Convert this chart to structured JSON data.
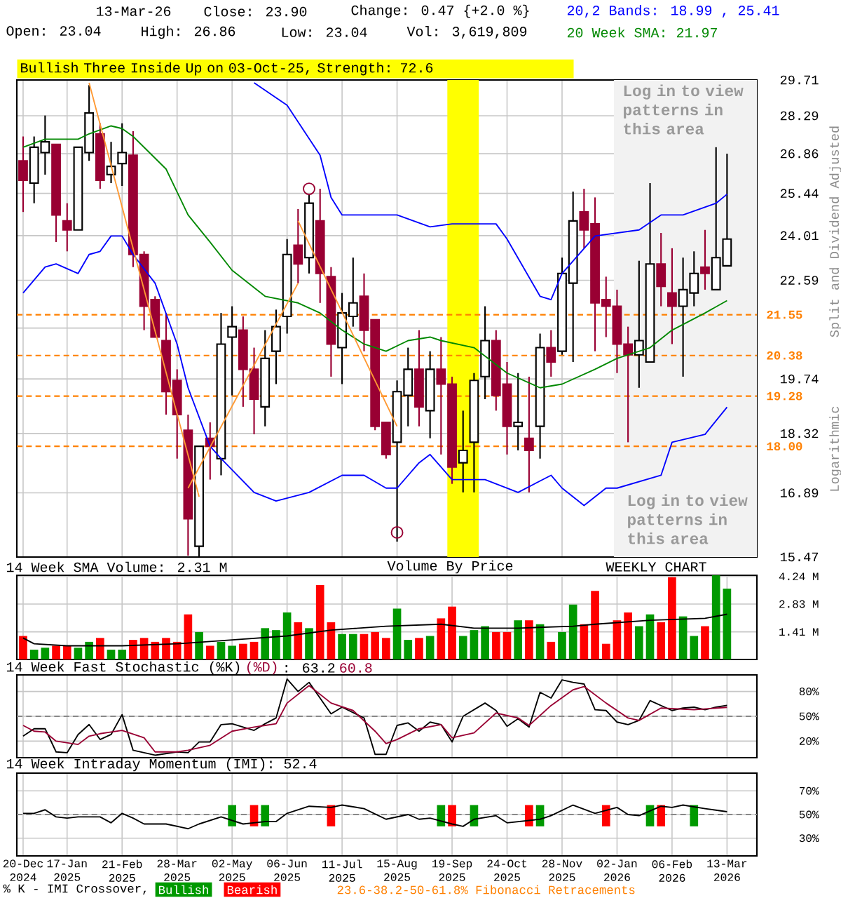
{
  "chart_data": [
    {
      "type": "candlestick",
      "x": [
        "2024-12-20",
        "2024-12-27",
        "2025-01-03",
        "2025-01-10",
        "2025-01-17",
        "2025-01-24",
        "2025-01-31",
        "2025-02-07",
        "2025-02-14",
        "2025-02-21",
        "2025-02-28",
        "2025-03-07",
        "2025-03-14",
        "2025-03-21",
        "2025-03-28",
        "2025-04-04",
        "2025-04-11",
        "2025-04-18",
        "2025-04-25",
        "2025-05-02",
        "2025-05-09",
        "2025-05-16",
        "2025-05-23",
        "2025-05-30",
        "2025-06-06",
        "2025-06-13",
        "2025-06-20",
        "2025-06-27",
        "2025-07-04",
        "2025-07-11",
        "2025-07-18",
        "2025-07-25",
        "2025-08-01",
        "2025-08-08",
        "2025-08-15",
        "2025-08-22",
        "2025-08-29",
        "2025-09-05",
        "2025-09-12",
        "2025-09-19",
        "2025-09-26",
        "2025-10-03",
        "2025-10-10",
        "2025-10-17",
        "2025-10-24",
        "2025-10-31",
        "2025-11-07",
        "2025-11-14",
        "2025-11-21",
        "2025-11-28",
        "2025-12-05",
        "2025-12-12",
        "2025-12-19",
        "2025-12-26",
        "2026-01-02",
        "2026-01-09",
        "2026-01-16",
        "2026-01-23",
        "2026-01-30",
        "2026-02-06",
        "2026-02-13",
        "2026-02-20",
        "2026-02-27",
        "2026-03-06",
        "2026-03-13"
      ],
      "series": [
        {
          "type": "candlestick",
          "colors": [
            "#990033",
            "#ffffff",
            "#ffffff",
            "#990033",
            "#990033",
            "#ffffff",
            "#ffffff",
            "#990033",
            "#ffffff",
            "#ffffff",
            "#990033",
            "#990033",
            "#990033",
            "#990033",
            "#990033",
            "#990033",
            "#ffffff",
            "#990033",
            "#ffffff",
            "#ffffff",
            "#990033",
            "#990033",
            "#ffffff",
            "#ffffff",
            "#ffffff",
            "#990033",
            "#ffffff",
            "#990033",
            "#990033",
            "#ffffff",
            "#ffffff",
            "#990033",
            "#990033",
            "#990033",
            "#ffffff",
            "#ffffff",
            "#990033",
            "#ffffff",
            "#990033",
            "#990033",
            "#ffffff",
            "#ffffff",
            "#ffffff",
            "#990033",
            "#990033",
            "#ffffff",
            "#990033",
            "#ffffff",
            "#990033",
            "#ffffff",
            "#ffffff",
            "#990033",
            "#990033",
            "#990033",
            "#990033",
            "#990033",
            "#ffffff",
            "#ffffff",
            "#990033",
            "#990033",
            "#ffffff",
            "#ffffff",
            "#990033",
            "#ffffff",
            "#ffffff"
          ],
          "ohlc": [
            [
              26.6,
              27.5,
              24.8,
              25.9
            ],
            [
              25.8,
              27.5,
              25.1,
              27.1
            ],
            [
              26.9,
              28.3,
              26.1,
              27.3
            ],
            [
              27.2,
              27.2,
              23.8,
              24.7
            ],
            [
              24.5,
              25.1,
              23.5,
              24.2
            ],
            [
              24.2,
              27.1,
              24.2,
              27.1
            ],
            [
              26.9,
              29.5,
              26.6,
              28.4
            ],
            [
              27.6,
              28.0,
              25.6,
              25.9
            ],
            [
              26.1,
              27.3,
              25.8,
              26.4
            ],
            [
              26.5,
              28.0,
              25.7,
              26.9
            ],
            [
              26.8,
              27.7,
              23.0,
              23.4
            ],
            [
              23.4,
              23.5,
              21.1,
              21.8
            ],
            [
              22.0,
              22.1,
              20.9,
              20.9
            ],
            [
              20.8,
              21.6,
              18.8,
              19.4
            ],
            [
              19.7,
              20.0,
              17.7,
              18.8
            ],
            [
              18.4,
              18.8,
              15.5,
              16.3
            ],
            [
              15.7,
              18.0,
              15.47,
              18.0
            ],
            [
              18.2,
              18.6,
              17.2,
              18.0
            ],
            [
              17.7,
              21.6,
              17.3,
              20.7
            ],
            [
              20.9,
              21.8,
              19.3,
              21.2
            ],
            [
              21.1,
              21.5,
              19.0,
              20.0
            ],
            [
              20.0,
              20.6,
              18.3,
              19.2
            ],
            [
              19.0,
              21.1,
              18.5,
              20.3
            ],
            [
              20.5,
              21.7,
              19.6,
              21.2
            ],
            [
              21.5,
              23.9,
              21.0,
              23.4
            ],
            [
              23.7,
              24.9,
              22.5,
              23.1
            ],
            [
              23.3,
              25.4,
              22.8,
              25.1
            ],
            [
              24.5,
              25.6,
              21.9,
              22.8
            ],
            [
              22.7,
              23.0,
              19.8,
              20.7
            ],
            [
              20.6,
              22.2,
              19.6,
              21.6
            ],
            [
              21.5,
              23.3,
              21.2,
              21.9
            ],
            [
              22.1,
              22.8,
              20.5,
              21.1
            ],
            [
              21.4,
              21.4,
              18.4,
              18.5
            ],
            [
              18.6,
              18.6,
              17.7,
              17.8
            ],
            [
              18.1,
              19.7,
              15.8,
              19.4
            ],
            [
              19.3,
              20.6,
              18.5,
              20.0
            ],
            [
              20.0,
              21.1,
              18.5,
              19.0
            ],
            [
              18.9,
              20.5,
              18.2,
              20.0
            ],
            [
              20.0,
              20.9,
              17.8,
              19.6
            ],
            [
              19.6,
              19.8,
              17.1,
              17.5
            ],
            [
              17.6,
              18.9,
              16.9,
              17.9
            ],
            [
              18.1,
              19.9,
              16.9,
              19.7
            ],
            [
              19.8,
              21.8,
              19.2,
              20.8
            ],
            [
              20.8,
              21.1,
              18.9,
              19.3
            ],
            [
              19.6,
              20.2,
              17.8,
              18.5
            ],
            [
              18.5,
              19.9,
              17.9,
              18.6
            ],
            [
              18.2,
              19.8,
              16.9,
              17.9
            ],
            [
              18.5,
              21.0,
              17.7,
              20.6
            ],
            [
              20.6,
              21.1,
              19.8,
              20.2
            ],
            [
              20.5,
              23.3,
              20.4,
              22.8
            ],
            [
              22.5,
              25.5,
              20.2,
              24.5
            ],
            [
              24.8,
              25.6,
              23.6,
              24.2
            ],
            [
              24.4,
              25.3,
              20.5,
              21.9
            ],
            [
              22.0,
              22.7,
              20.9,
              21.8
            ],
            [
              21.8,
              22.3,
              19.9,
              20.7
            ],
            [
              20.7,
              21.2,
              18.1,
              20.4
            ],
            [
              20.4,
              23.2,
              19.5,
              20.8
            ],
            [
              20.2,
              25.8,
              20.2,
              23.1
            ],
            [
              23.1,
              24.1,
              21.8,
              22.4
            ],
            [
              22.2,
              23.6,
              20.7,
              21.8
            ],
            [
              21.8,
              23.3,
              19.8,
              22.3
            ],
            [
              22.2,
              23.5,
              21.8,
              22.8
            ],
            [
              23.0,
              24.2,
              22.3,
              22.8
            ],
            [
              22.3,
              27.1,
              22.3,
              23.3
            ],
            [
              23.04,
              26.86,
              23.04,
              23.9
            ]
          ]
        },
        {
          "type": "line",
          "color": "#0000ff",
          "x": [
            "2025-05-16",
            "2025-06-06",
            "2025-06-27",
            "2025-07-04",
            "2025-07-11",
            "2025-08-15",
            "2025-09-05",
            "2025-09-19",
            "2025-10-17",
            "2025-10-24",
            "2025-11-14",
            "2025-11-21",
            "2025-11-28",
            "2025-12-19",
            "2026-01-16",
            "2026-01-30",
            "2026-02-13",
            "2026-03-06",
            "2026-03-13"
          ],
          "values": [
            29.6,
            28.7,
            26.8,
            25.3,
            24.7,
            24.7,
            24.3,
            24.4,
            24.4,
            23.9,
            22.1,
            22.0,
            22.8,
            24.0,
            24.2,
            24.7,
            24.7,
            25.1,
            25.41
          ]
        },
        {
          "type": "line",
          "color": "#0000ff",
          "x": [
            "2024-12-20",
            "2025-01-03",
            "2025-01-10",
            "2025-01-24",
            "2025-01-31",
            "2025-02-07",
            "2025-02-14",
            "2025-02-21",
            "2025-02-28",
            "2025-03-14",
            "2025-03-28",
            "2025-04-04",
            "2025-04-18",
            "2025-04-25",
            "2025-05-16",
            "2025-05-30",
            "2025-06-20",
            "2025-07-11",
            "2025-07-25",
            "2025-08-08",
            "2025-08-15",
            "2025-08-29",
            "2025-09-05",
            "2025-09-19",
            "2025-10-10",
            "2025-10-31",
            "2025-11-21",
            "2025-11-28",
            "2025-12-12",
            "2025-12-26",
            "2026-01-02",
            "2026-01-30",
            "2026-02-06",
            "2026-02-27",
            "2026-03-13"
          ],
          "values": [
            22.2,
            23.0,
            23.1,
            22.8,
            23.4,
            23.5,
            24.0,
            24.0,
            23.4,
            22.5,
            20.7,
            19.5,
            18.0,
            17.7,
            16.9,
            16.7,
            16.9,
            17.3,
            17.3,
            17.0,
            17.0,
            17.6,
            17.8,
            17.2,
            17.2,
            16.9,
            17.3,
            17.0,
            16.6,
            17.0,
            17.0,
            17.3,
            18.1,
            18.3,
            18.99
          ]
        },
        {
          "type": "line",
          "color": "#008800",
          "x": [
            "2024-12-20",
            "2025-01-03",
            "2025-01-24",
            "2025-01-31",
            "2025-02-14",
            "2025-02-21",
            "2025-02-28",
            "2025-03-21",
            "2025-04-04",
            "2025-04-18",
            "2025-05-02",
            "2025-05-23",
            "2025-06-13",
            "2025-06-27",
            "2025-07-11",
            "2025-07-25",
            "2025-08-08",
            "2025-08-22",
            "2025-09-05",
            "2025-09-12",
            "2025-10-03",
            "2025-10-24",
            "2025-11-14",
            "2025-11-28",
            "2025-12-19",
            "2026-01-02",
            "2026-01-23",
            "2026-02-06",
            "2026-02-27",
            "2026-03-13"
          ],
          "values": [
            27.1,
            27.4,
            27.4,
            27.6,
            27.9,
            27.8,
            27.5,
            26.3,
            24.7,
            23.8,
            22.9,
            22.1,
            21.9,
            21.6,
            21.1,
            20.7,
            20.5,
            20.8,
            20.9,
            20.8,
            20.6,
            19.9,
            19.5,
            19.6,
            20.0,
            20.3,
            20.6,
            21.1,
            21.6,
            21.97
          ]
        },
        {
          "type": "line",
          "color": "#ff9933",
          "x": [
            "2025-01-31",
            "2025-04-11"
          ],
          "values": [
            29.6,
            16.8
          ]
        },
        {
          "type": "line",
          "color": "#ff9933",
          "x": [
            "2025-04-04",
            "2025-06-13"
          ],
          "values": [
            17.0,
            22.5
          ]
        },
        {
          "type": "line",
          "color": "#ff9933",
          "x": [
            "2025-06-13",
            "2025-08-15"
          ],
          "values": [
            24.5,
            18.5
          ]
        },
        {
          "type": "scatter",
          "color": "#990033",
          "marker": "circle",
          "x": [
            "2025-06-20",
            "2025-08-15"
          ],
          "values": [
            25.6,
            16.0
          ]
        }
      ],
      "xlim": [
        "2024-12-16",
        "2026-04-01"
      ],
      "xticks": [
        {
          "value": "2024-12-20",
          "label": null
        },
        {
          "value": "2025-01-17",
          "label": null
        },
        {
          "value": "2025-02-21",
          "label": null
        },
        {
          "value": "2025-03-28",
          "label": null
        },
        {
          "value": "2025-05-02",
          "label": null
        },
        {
          "value": "2025-06-06",
          "label": null
        },
        {
          "value": "2025-07-11",
          "label": null
        },
        {
          "value": "2025-08-15",
          "label": null
        },
        {
          "value": "2025-09-19",
          "label": null
        },
        {
          "value": "2025-10-24",
          "label": null
        },
        {
          "value": "2025-11-28",
          "label": null
        },
        {
          "value": "2026-01-02",
          "label": null
        },
        {
          "value": "2026-02-06",
          "label": null
        },
        {
          "value": "2026-03-13",
          "label": null
        }
      ],
      "ylim": [
        15.47,
        29.71
      ],
      "yticks": [
        15.47,
        16.89,
        18.32,
        19.74,
        {
          "value": 21.16,
          "label": null
        },
        22.59,
        24.01,
        25.44,
        26.86,
        28.29,
        29.71
      ],
      "log": true,
      "grid": true,
      "tick_labels": "y",
      "ylabel": "Split and Dividend Adjusted",
      "bands": [
        {
          "axis": "x",
          "from": "2025-09-16",
          "to": "2025-10-06",
          "color": "#ffff00",
          "label": "Bullish Three Inside Up on 03-Oct-25, Strength: 72.6"
        },
        {
          "axis": "x",
          "from": "2025-12-31",
          "to": "2026-04-01",
          "color": "#f2f2f2",
          "label": "Log in to view patterns in this area"
        }
      ],
      "ref_lines": [
        {
          "axis": "y",
          "value": 21.55,
          "label": "21.55",
          "color": "#ff8000",
          "line_style": "dashed"
        },
        {
          "axis": "y",
          "value": 20.38,
          "label": "20.38",
          "color": "#ff8000",
          "line_style": "dashed"
        },
        {
          "axis": "y",
          "value": 19.28,
          "label": "19.28",
          "color": "#ff8000",
          "line_style": "dashed"
        },
        {
          "axis": "y",
          "value": 18.0,
          "label": "18.00",
          "color": "#ff8000",
          "line_style": "dashed"
        }
      ],
      "annotations": [
        "13-Mar-26",
        "Close: 23.90",
        "Change: 0.47 {+2.0 %}",
        "Open: 23.04",
        "High: 26.86",
        "Low: 23.04",
        "Vol: 3,619,809",
        "20,2 Bands: 18.99 , 25.41",
        "20 Week SMA: 21.97",
        "Log in to view patterns in this area",
        "Logarithmic",
        "23.6-38.2-50-61.8% Fibonacci Retracements"
      ]
    },
    {
      "type": "bar",
      "title": "14 Week SMA Volume: 2.31 M",
      "x": [
        "2024-12-20",
        "2024-12-27",
        "2025-01-03",
        "2025-01-10",
        "2025-01-17",
        "2025-01-24",
        "2025-01-31",
        "2025-02-07",
        "2025-02-14",
        "2025-02-21",
        "2025-02-28",
        "2025-03-07",
        "2025-03-14",
        "2025-03-21",
        "2025-03-28",
        "2025-04-04",
        "2025-04-11",
        "2025-04-18",
        "2025-04-25",
        "2025-05-02",
        "2025-05-09",
        "2025-05-16",
        "2025-05-23",
        "2025-05-30",
        "2025-06-06",
        "2025-06-13",
        "2025-06-20",
        "2025-06-27",
        "2025-07-04",
        "2025-07-11",
        "2025-07-18",
        "2025-07-25",
        "2025-08-01",
        "2025-08-08",
        "2025-08-15",
        "2025-08-22",
        "2025-08-29",
        "2025-09-05",
        "2025-09-12",
        "2025-09-19",
        "2025-09-26",
        "2025-10-03",
        "2025-10-10",
        "2025-10-17",
        "2025-10-24",
        "2025-10-31",
        "2025-11-07",
        "2025-11-14",
        "2025-11-21",
        "2025-11-28",
        "2025-12-05",
        "2025-12-12",
        "2025-12-19",
        "2025-12-26",
        "2026-01-02",
        "2026-01-09",
        "2026-01-16",
        "2026-01-23",
        "2026-01-30",
        "2026-02-06",
        "2026-02-13",
        "2026-02-20",
        "2026-02-27",
        "2026-03-06",
        "2026-03-13"
      ],
      "series": [
        {
          "type": "bar",
          "colors": [
            "#ff0000",
            "#009900",
            "#009900",
            "#ff0000",
            "#ff0000",
            "#009900",
            "#009900",
            "#ff0000",
            "#009900",
            "#009900",
            "#ff0000",
            "#ff0000",
            "#ff0000",
            "#ff0000",
            "#ff0000",
            "#ff0000",
            "#009900",
            "#ff0000",
            "#009900",
            "#009900",
            "#ff0000",
            "#ff0000",
            "#009900",
            "#009900",
            "#009900",
            "#ff0000",
            "#009900",
            "#ff0000",
            "#ff0000",
            "#009900",
            "#009900",
            "#ff0000",
            "#ff0000",
            "#ff0000",
            "#009900",
            "#009900",
            "#ff0000",
            "#009900",
            "#ff0000",
            "#ff0000",
            "#009900",
            "#009900",
            "#009900",
            "#ff0000",
            "#ff0000",
            "#009900",
            "#ff0000",
            "#009900",
            "#ff0000",
            "#009900",
            "#009900",
            "#ff0000",
            "#ff0000",
            "#ff0000",
            "#ff0000",
            "#ff0000",
            "#009900",
            "#009900",
            "#ff0000",
            "#ff0000",
            "#009900",
            "#009900",
            "#ff0000",
            "#009900",
            "#009900"
          ],
          "values": [
            1.2,
            0.5,
            0.6,
            0.7,
            0.7,
            0.6,
            0.9,
            1.1,
            0.5,
            0.5,
            1.0,
            1.1,
            0.9,
            1.1,
            0.9,
            2.3,
            1.4,
            0.7,
            0.9,
            0.7,
            0.8,
            0.9,
            1.6,
            1.5,
            2.4,
            1.9,
            1.6,
            3.8,
            1.9,
            1.3,
            1.3,
            1.3,
            1.4,
            1.1,
            2.6,
            1.0,
            1.1,
            1.2,
            2.1,
            2.7,
            1.2,
            1.5,
            1.7,
            1.4,
            1.4,
            2.0,
            2.0,
            1.8,
            0.9,
            1.4,
            2.8,
            1.8,
            3.5,
            0.8,
            2.0,
            2.4,
            1.7,
            2.3,
            1.9,
            4.2,
            2.2,
            1.2,
            1.7,
            4.3,
            3.62
          ]
        },
        {
          "type": "line",
          "color": "#000000",
          "x": [
            "2024-12-20",
            "2024-12-27",
            "2025-01-17",
            "2025-02-21",
            "2025-03-28",
            "2025-05-02",
            "2025-06-06",
            "2025-07-04",
            "2025-08-08",
            "2025-09-12",
            "2025-10-03",
            "2025-10-31",
            "2025-12-05",
            "2025-12-19",
            "2026-01-23",
            "2026-02-27",
            "2026-03-13"
          ],
          "values": [
            1.1,
            0.8,
            0.7,
            0.7,
            0.8,
            1.0,
            1.2,
            1.5,
            1.7,
            1.8,
            1.6,
            1.6,
            1.7,
            1.8,
            2.0,
            2.1,
            2.31
          ]
        }
      ],
      "xlim": [
        "2024-12-16",
        "2026-04-01"
      ],
      "xticks": [
        {
          "value": "2024-12-20",
          "label": null
        },
        {
          "value": "2025-01-17",
          "label": null
        },
        {
          "value": "2025-02-21",
          "label": null
        },
        {
          "value": "2025-03-28",
          "label": null
        },
        {
          "value": "2025-05-02",
          "label": null
        },
        {
          "value": "2025-06-06",
          "label": null
        },
        {
          "value": "2025-07-11",
          "label": null
        },
        {
          "value": "2025-08-15",
          "label": null
        },
        {
          "value": "2025-09-19",
          "label": null
        },
        {
          "value": "2025-10-24",
          "label": null
        },
        {
          "value": "2025-11-28",
          "label": null
        },
        {
          "value": "2026-01-02",
          "label": null
        },
        {
          "value": "2026-02-06",
          "label": null
        },
        {
          "value": "2026-03-13",
          "label": null
        }
      ],
      "ylim": [
        0,
        4.3
      ],
      "yticks": [
        {
          "value": 1.41,
          "label": "1.41 M"
        },
        {
          "value": 2.83,
          "label": "2.83 M"
        },
        {
          "value": 4.24,
          "label": "4.24 M"
        }
      ],
      "grid": true,
      "tick_labels": "y",
      "annotations": [
        "Volume By Price",
        "WEEKLY CHART"
      ]
    },
    {
      "type": "line",
      "series": [
        {
          "name": "14 Week Fast Stochastic (%K)",
          "color": "#000000",
          "x": [
            "2024-12-20",
            "2024-12-27",
            "2025-01-03",
            "2025-01-10",
            "2025-01-17",
            "2025-01-24",
            "2025-01-31",
            "2025-02-07",
            "2025-02-14",
            "2025-02-21",
            "2025-02-28",
            "2025-03-07",
            "2025-03-14",
            "2025-03-28",
            "2025-04-04",
            "2025-04-11",
            "2025-04-18",
            "2025-04-25",
            "2025-05-02",
            "2025-05-16",
            "2025-05-23",
            "2025-05-30",
            "2025-06-06",
            "2025-06-13",
            "2025-06-20",
            "2025-07-04",
            "2025-07-11",
            "2025-07-25",
            "2025-08-01",
            "2025-08-08",
            "2025-08-15",
            "2025-08-22",
            "2025-08-29",
            "2025-09-05",
            "2025-09-12",
            "2025-09-19",
            "2025-09-26",
            "2025-10-10",
            "2025-10-17",
            "2025-10-24",
            "2025-10-31",
            "2025-11-07",
            "2025-11-14",
            "2025-11-21",
            "2025-11-28",
            "2025-12-05",
            "2025-12-12",
            "2025-12-19",
            "2025-12-26",
            "2026-01-02",
            "2026-01-09",
            "2026-01-16",
            "2026-01-23",
            "2026-01-30",
            "2026-02-06",
            "2026-02-13",
            "2026-02-20",
            "2026-02-27",
            "2026-03-06",
            "2026-03-13"
          ],
          "values": [
            26,
            35,
            35,
            7,
            6,
            28,
            40,
            22,
            28,
            52,
            9,
            6,
            3,
            7,
            6,
            19,
            19,
            40,
            41,
            33,
            41,
            48,
            95,
            80,
            91,
            53,
            61,
            48,
            4,
            4,
            39,
            42,
            32,
            43,
            40,
            19,
            50,
            66,
            57,
            38,
            47,
            37,
            79,
            72,
            94,
            91,
            89,
            58,
            57,
            43,
            40,
            45,
            69,
            63,
            57,
            60,
            61,
            58,
            61,
            63.2
          ]
        },
        {
          "name": "(%D)",
          "color": "#990033",
          "x": [
            "2024-12-20",
            "2024-12-27",
            "2025-01-03",
            "2025-01-10",
            "2025-01-24",
            "2025-01-31",
            "2025-02-07",
            "2025-02-14",
            "2025-02-21",
            "2025-03-07",
            "2025-03-14",
            "2025-03-28",
            "2025-04-04",
            "2025-04-18",
            "2025-05-02",
            "2025-05-16",
            "2025-05-23",
            "2025-05-30",
            "2025-06-06",
            "2025-06-20",
            "2025-07-04",
            "2025-07-18",
            "2025-08-01",
            "2025-08-08",
            "2025-08-15",
            "2025-08-29",
            "2025-09-12",
            "2025-09-19",
            "2025-10-03",
            "2025-10-17",
            "2025-10-31",
            "2025-11-07",
            "2025-11-21",
            "2025-12-05",
            "2025-12-12",
            "2025-12-26",
            "2026-01-09",
            "2026-01-16",
            "2026-01-30",
            "2026-02-20",
            "2026-03-13"
          ],
          "values": [
            39,
            32,
            31,
            20,
            16,
            26,
            29,
            31,
            33,
            24,
            7,
            7,
            9,
            15,
            32,
            37,
            39,
            41,
            66,
            87,
            66,
            57,
            32,
            17,
            22,
            35,
            40,
            24,
            30,
            54,
            48,
            39,
            63,
            82,
            86,
            66,
            48,
            45,
            60,
            58,
            60.8
          ]
        }
      ],
      "xlim": [
        "2024-12-16",
        "2026-04-01"
      ],
      "xticks": [
        {
          "value": "2024-12-20",
          "label": null
        },
        {
          "value": "2025-01-17",
          "label": null
        },
        {
          "value": "2025-02-21",
          "label": null
        },
        {
          "value": "2025-03-28",
          "label": null
        },
        {
          "value": "2025-05-02",
          "label": null
        },
        {
          "value": "2025-06-06",
          "label": null
        },
        {
          "value": "2025-07-11",
          "label": null
        },
        {
          "value": "2025-08-15",
          "label": null
        },
        {
          "value": "2025-09-19",
          "label": null
        },
        {
          "value": "2025-10-24",
          "label": null
        },
        {
          "value": "2025-11-28",
          "label": null
        },
        {
          "value": "2026-01-02",
          "label": null
        },
        {
          "value": "2026-02-06",
          "label": null
        },
        {
          "value": "2026-03-13",
          "label": null
        }
      ],
      "ylim": [
        0,
        100
      ],
      "yticks": [
        {
          "value": 20,
          "label": "20%"
        },
        {
          "value": 50,
          "label": "50%"
        },
        {
          "value": 80,
          "label": "80%"
        }
      ],
      "grid": true,
      "tick_labels": "y",
      "legend": "top left",
      "ref_lines": [
        {
          "axis": "y",
          "value": 50,
          "color": "#888888",
          "line_style": "dashed"
        }
      ],
      "annotations": [
        ": 63.2",
        "60.8"
      ]
    },
    {
      "type": "line",
      "title": "14 Week Intraday Momentum (IMI): 52.4",
      "series": [
        {
          "type": "bar",
          "name": "Bullish",
          "color": "#009900",
          "x": [
            "2025-05-02",
            "2025-05-23",
            "2025-09-12",
            "2025-10-03",
            "2025-11-14",
            "2026-01-23",
            "2026-02-20"
          ],
          "base": [
            40,
            40,
            40,
            40,
            40,
            40,
            40
          ],
          "values": [
            18,
            18,
            18,
            18,
            18,
            18,
            18
          ]
        },
        {
          "type": "bar",
          "name": "Bearish",
          "color": "#ff0000",
          "x": [
            "2025-05-16",
            "2025-07-04",
            "2025-09-19",
            "2025-11-07",
            "2025-12-26",
            "2026-01-30"
          ],
          "base": [
            40,
            40,
            40,
            40,
            40,
            40
          ],
          "values": [
            18,
            18,
            18,
            18,
            18,
            18
          ]
        },
        {
          "color": "#000000",
          "x": [
            "2024-12-20",
            "2024-12-27",
            "2025-01-03",
            "2025-01-10",
            "2025-01-17",
            "2025-01-24",
            "2025-02-07",
            "2025-02-14",
            "2025-02-21",
            "2025-02-28",
            "2025-03-07",
            "2025-03-21",
            "2025-04-04",
            "2025-04-11",
            "2025-04-25",
            "2025-05-09",
            "2025-05-23",
            "2025-05-30",
            "2025-06-06",
            "2025-06-20",
            "2025-07-04",
            "2025-07-11",
            "2025-07-25",
            "2025-08-08",
            "2025-08-22",
            "2025-08-29",
            "2025-09-05",
            "2025-09-19",
            "2025-09-26",
            "2025-10-03",
            "2025-10-17",
            "2025-10-24",
            "2025-11-14",
            "2025-11-21",
            "2025-12-05",
            "2025-12-19",
            "2026-01-02",
            "2026-01-09",
            "2026-01-16",
            "2026-01-30",
            "2026-02-06",
            "2026-02-13",
            "2026-02-27",
            "2026-03-13"
          ],
          "values": [
            51,
            51,
            54,
            48,
            47,
            48,
            48,
            43,
            51,
            47,
            42,
            42,
            38,
            42,
            48,
            42,
            44,
            44,
            51,
            57,
            56,
            58,
            55,
            46,
            50,
            46,
            47,
            42,
            40,
            46,
            49,
            43,
            46,
            49,
            58,
            51,
            56,
            50,
            49,
            57,
            56,
            58,
            55,
            52.4
          ]
        }
      ],
      "xlim": [
        "2024-12-16",
        "2026-04-01"
      ],
      "xticks": [
        {
          "value": "2024-12-20",
          "label": "20-Dec 2024"
        },
        {
          "value": "2025-01-17",
          "label": "17-Jan 2025"
        },
        {
          "value": "2025-02-21",
          "label": "21-Feb 2025"
        },
        {
          "value": "2025-03-28",
          "label": "28-Mar 2025"
        },
        {
          "value": "2025-05-02",
          "label": "02-May 2025"
        },
        {
          "value": "2025-06-06",
          "label": "06-Jun 2025"
        },
        {
          "value": "2025-07-11",
          "label": "11-Jul 2025"
        },
        {
          "value": "2025-08-15",
          "label": "15-Aug 2025"
        },
        {
          "value": "2025-09-19",
          "label": "19-Sep 2025"
        },
        {
          "value": "2025-10-24",
          "label": "24-Oct 2025"
        },
        {
          "value": "2025-11-28",
          "label": "28-Nov 2025"
        },
        {
          "value": "2026-01-02",
          "label": "02-Jan 2026"
        },
        {
          "value": "2026-02-06",
          "label": "06-Feb 2026"
        },
        {
          "value": "2026-03-13",
          "label": "13-Mar 2026"
        }
      ],
      "ylim": [
        15,
        85
      ],
      "yticks": [
        {
          "value": 30,
          "label": "30%"
        },
        {
          "value": 50,
          "label": "50%"
        },
        {
          "value": 70,
          "label": "70%"
        }
      ],
      "grid": true,
      "legend": "bottom left",
      "ref_lines": [
        {
          "axis": "y",
          "value": 50,
          "color": "#888888",
          "line_style": "dashed"
        }
      ],
      "annotations": [
        "% K - IMI Crossover,"
      ]
    }
  ]
}
